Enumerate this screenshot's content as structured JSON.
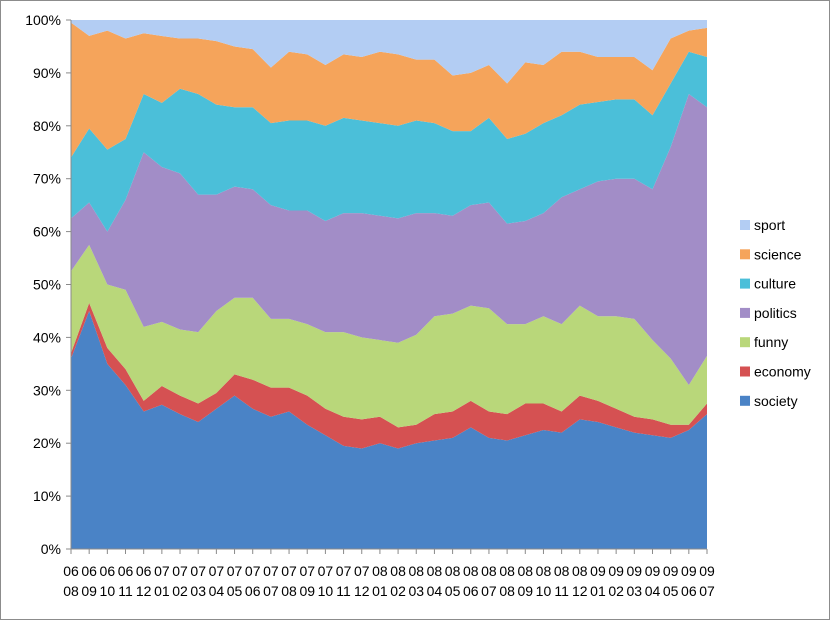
{
  "chart_data": {
    "type": "area",
    "stacked": "percent",
    "title": "",
    "xlabel": "",
    "ylabel": "",
    "ylim": [
      0,
      100
    ],
    "y_ticks": [
      "0%",
      "10%",
      "20%",
      "30%",
      "40%",
      "50%",
      "60%",
      "70%",
      "80%",
      "90%",
      "100%"
    ],
    "grid": false,
    "legend_position": "right",
    "x_labels": [
      [
        "06",
        "08"
      ],
      [
        "06",
        "09"
      ],
      [
        "06",
        "10"
      ],
      [
        "06",
        "11"
      ],
      [
        "06",
        "12"
      ],
      [
        "07",
        "01"
      ],
      [
        "07",
        "02"
      ],
      [
        "07",
        "03"
      ],
      [
        "07",
        "04"
      ],
      [
        "07",
        "05"
      ],
      [
        "07",
        "06"
      ],
      [
        "07",
        "07"
      ],
      [
        "07",
        "08"
      ],
      [
        "07",
        "09"
      ],
      [
        "07",
        "10"
      ],
      [
        "07",
        "11"
      ],
      [
        "07",
        "12"
      ],
      [
        "08",
        "01"
      ],
      [
        "08",
        "02"
      ],
      [
        "08",
        "03"
      ],
      [
        "08",
        "04"
      ],
      [
        "08",
        "05"
      ],
      [
        "08",
        "06"
      ],
      [
        "08",
        "07"
      ],
      [
        "08",
        "08"
      ],
      [
        "08",
        "09"
      ],
      [
        "08",
        "10"
      ],
      [
        "08",
        "11"
      ],
      [
        "08",
        "12"
      ],
      [
        "09",
        "01"
      ],
      [
        "09",
        "02"
      ],
      [
        "09",
        "03"
      ],
      [
        "09",
        "04"
      ],
      [
        "09",
        "05"
      ],
      [
        "09",
        "06"
      ],
      [
        "09",
        "07"
      ]
    ],
    "legend_order": [
      "sport",
      "science",
      "culture",
      "politics",
      "funny",
      "economy",
      "society"
    ],
    "series": [
      {
        "name": "society",
        "color": "#4a83c6",
        "values": [
          36,
          45,
          35,
          31,
          26,
          27,
          25.5,
          24,
          26.5,
          29,
          26.5,
          25,
          26,
          23.5,
          21.5,
          19.5,
          19,
          20,
          19,
          20,
          20.5,
          21,
          23,
          21,
          20.5,
          21.5,
          22.5,
          22,
          24.5,
          24,
          23,
          22,
          21.5,
          21,
          22.5,
          25.5
        ]
      },
      {
        "name": "economy",
        "color": "#d55152",
        "values": [
          1,
          1.5,
          3,
          3,
          2,
          3.5,
          3.5,
          3.5,
          3,
          4,
          5.5,
          5.5,
          4.5,
          5.5,
          5,
          5.5,
          5.5,
          5,
          4,
          3.5,
          5,
          5,
          5,
          5,
          5,
          6,
          5,
          4,
          4.5,
          4,
          3.5,
          3,
          3,
          2.5,
          1,
          2
        ]
      },
      {
        "name": "funny",
        "color": "#b9d77a",
        "values": [
          15.5,
          11,
          12,
          15,
          14,
          12,
          12.5,
          13.5,
          15.5,
          14.5,
          15.5,
          13,
          13,
          13.5,
          14.5,
          16,
          15.5,
          14.5,
          16,
          17,
          18.5,
          18.5,
          18,
          19.5,
          17,
          15,
          16.5,
          16.5,
          17,
          16,
          17.5,
          18.5,
          15,
          12.5,
          7.5,
          9
        ]
      },
      {
        "name": "politics",
        "color": "#a28dc7",
        "values": [
          10,
          8,
          10,
          17,
          33,
          29,
          29.5,
          26,
          22,
          21,
          20.5,
          21.5,
          20.5,
          21.5,
          21,
          22.5,
          23.5,
          23.5,
          23.5,
          23,
          19.5,
          18.5,
          19,
          20,
          19,
          19.5,
          19.5,
          24,
          22,
          25.5,
          26,
          26.5,
          28.5,
          40,
          55,
          47
        ]
      },
      {
        "name": "culture",
        "color": "#4bbfd9",
        "values": [
          11.5,
          14,
          15.5,
          11.5,
          11,
          12,
          16,
          19,
          17,
          15,
          15.5,
          15.5,
          17,
          17,
          18,
          18,
          17.5,
          17.5,
          17.5,
          17.5,
          17,
          16,
          14,
          16,
          16,
          16.5,
          17,
          15.5,
          16,
          15,
          15,
          15,
          14,
          12,
          8,
          9.5
        ]
      },
      {
        "name": "science",
        "color": "#f5a45b",
        "values": [
          25.5,
          17.5,
          22.5,
          19,
          11.5,
          12.5,
          9.5,
          10.5,
          12,
          11.5,
          11,
          10.5,
          13,
          12.5,
          11.5,
          12,
          12,
          13.5,
          13.5,
          11.5,
          12,
          10.5,
          11,
          10,
          10.5,
          13.5,
          11,
          12,
          10,
          8.5,
          8,
          8,
          8.5,
          8.5,
          4,
          5.5
        ]
      },
      {
        "name": "sport",
        "color": "#b3cdf3",
        "values": [
          0.5,
          3,
          2,
          3.5,
          2.5,
          3,
          3.5,
          3.5,
          4,
          5,
          5.5,
          9,
          6,
          6.5,
          8.5,
          6.5,
          7,
          6,
          6.5,
          7.5,
          7.5,
          10.5,
          10,
          8.5,
          12,
          8,
          8.5,
          6,
          6,
          7,
          7,
          7,
          9.5,
          3.5,
          2,
          1.5
        ]
      }
    ]
  }
}
